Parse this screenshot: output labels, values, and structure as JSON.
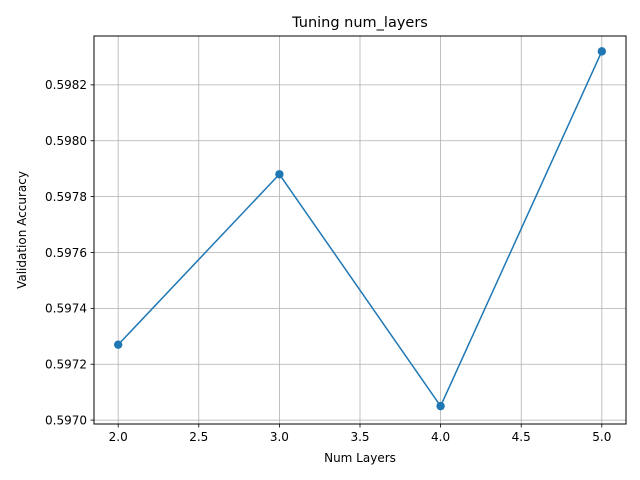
{
  "chart_data": {
    "type": "line",
    "title": "Tuning num_layers",
    "xlabel": "Num Layers",
    "ylabel": "Validation Accuracy",
    "x": [
      2.0,
      3.0,
      4.0,
      5.0
    ],
    "series": [
      {
        "values": [
          0.59727,
          0.59788,
          0.59705,
          0.59832
        ]
      }
    ],
    "xlim": [
      1.85,
      5.15
    ],
    "ylim": [
      0.596986,
      0.598375
    ],
    "xticks": [
      2.0,
      2.5,
      3.0,
      3.5,
      4.0,
      4.5,
      5.0
    ],
    "xtick_labels": [
      "2.0",
      "2.5",
      "3.0",
      "3.5",
      "4.0",
      "4.5",
      "5.0"
    ],
    "yticks": [
      0.597,
      0.5972,
      0.5974,
      0.5976,
      0.5978,
      0.598,
      0.5982
    ],
    "ytick_labels": [
      "0.5970",
      "0.5972",
      "0.5974",
      "0.5976",
      "0.5978",
      "0.5980",
      "0.5982"
    ],
    "grid": true,
    "legend": "none",
    "colors": {
      "line": "#1f77b4",
      "grid": "#b0b0b0",
      "axes": "#000000"
    },
    "marker": "circle"
  }
}
